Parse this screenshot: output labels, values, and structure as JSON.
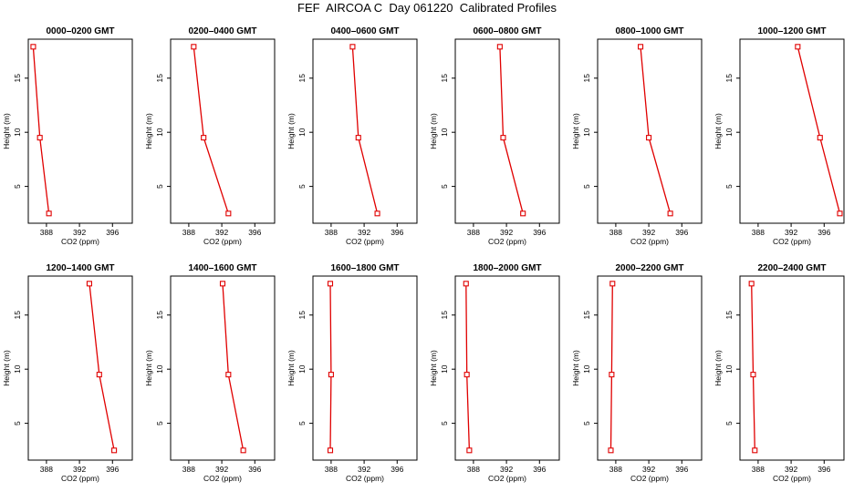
{
  "figure": {
    "title": "FEF  AIRCOA C  Day 061220  Calibrated Profiles"
  },
  "chart_data": {
    "type": "line",
    "xlabel": "CO2 (ppm)",
    "ylabel": "Height (m)",
    "xlim": [
      385.8,
      398.4
    ],
    "ylim": [
      1.6,
      18.6
    ],
    "xticks": [
      388,
      392,
      396
    ],
    "yticks": [
      5,
      10,
      15
    ],
    "line_color": "#e00000",
    "marker": "open-square",
    "heights": [
      17.9,
      9.5,
      2.5
    ],
    "panels": [
      {
        "title": "0000–0200 GMT",
        "co2": [
          386.4,
          387.2,
          388.3
        ]
      },
      {
        "title": "0200–0400 GMT",
        "co2": [
          388.6,
          389.8,
          392.8
        ]
      },
      {
        "title": "0400–0600 GMT",
        "co2": [
          390.6,
          391.3,
          393.6
        ]
      },
      {
        "title": "0600–0800 GMT",
        "co2": [
          391.2,
          391.6,
          394.0
        ]
      },
      {
        "title": "0800–1000 GMT",
        "co2": [
          391.0,
          392.0,
          394.6
        ]
      },
      {
        "title": "1000–1200 GMT",
        "co2": [
          392.8,
          395.5,
          397.9
        ]
      },
      {
        "title": "1200–1400 GMT",
        "co2": [
          393.2,
          394.4,
          396.2
        ]
      },
      {
        "title": "1400–1600 GMT",
        "co2": [
          392.1,
          392.8,
          394.6
        ]
      },
      {
        "title": "1600–1800 GMT",
        "co2": [
          387.9,
          388.0,
          387.9
        ]
      },
      {
        "title": "1800–2000 GMT",
        "co2": [
          387.1,
          387.2,
          387.5
        ]
      },
      {
        "title": "2000–2200 GMT",
        "co2": [
          387.6,
          387.5,
          387.4
        ]
      },
      {
        "title": "2200–2400 GMT",
        "co2": [
          387.2,
          387.4,
          387.6
        ]
      }
    ]
  }
}
